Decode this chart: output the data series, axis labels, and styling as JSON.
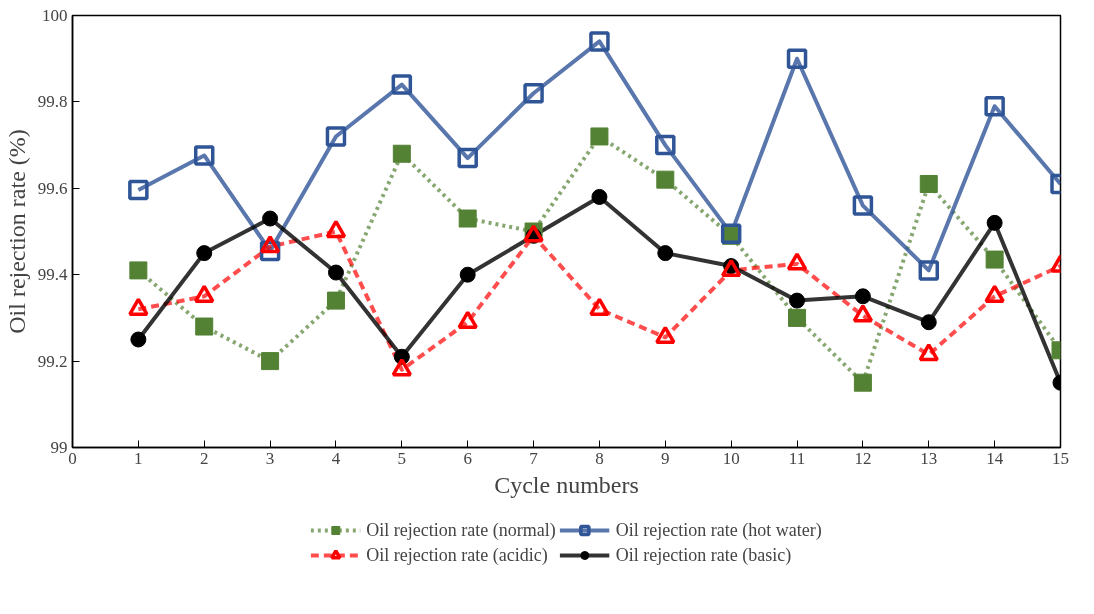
{
  "chart_data": {
    "type": "line",
    "xlabel": "Cycle numbers",
    "ylabel": "Oil rejection rate (%)",
    "x": [
      1,
      2,
      3,
      4,
      5,
      6,
      7,
      8,
      9,
      10,
      11,
      12,
      13,
      14,
      15
    ],
    "xlim": [
      0,
      15
    ],
    "xticks": [
      0,
      1,
      2,
      3,
      4,
      5,
      6,
      7,
      8,
      9,
      10,
      11,
      12,
      13,
      14,
      15
    ],
    "ylim": [
      99,
      100
    ],
    "yticks": [
      99,
      99.2,
      99.4,
      99.6,
      99.8,
      100
    ],
    "grid": false,
    "legend": "bottom",
    "series": [
      {
        "name": "Oil rejection rate (normal)",
        "color": "#548235",
        "marker": "square",
        "line_style": "dotted",
        "values": [
          99.41,
          99.28,
          99.2,
          99.34,
          99.68,
          99.53,
          99.5,
          99.72,
          99.62,
          99.49,
          99.3,
          99.15,
          99.61,
          99.435,
          99.225
        ]
      },
      {
        "name": "Oil rejection rate (hot water)",
        "color": "#2f5597",
        "marker": "square",
        "line_style": "solid",
        "values": [
          99.596,
          99.676,
          99.455,
          99.72,
          99.84,
          99.67,
          99.82,
          99.94,
          99.7,
          99.495,
          99.9,
          99.56,
          99.41,
          99.79,
          99.61
        ]
      },
      {
        "name": "Oil rejection rate (acidic)",
        "color": "#ff0000",
        "marker": "triangle",
        "line_style": "dashed",
        "values": [
          99.32,
          99.35,
          99.465,
          99.5,
          99.18,
          99.29,
          99.49,
          99.32,
          99.255,
          99.41,
          99.425,
          99.305,
          99.215,
          99.35,
          99.42
        ]
      },
      {
        "name": "Oil rejection rate (basic)",
        "color": "#000000",
        "marker": "circle",
        "line_style": "solid",
        "values": [
          99.25,
          99.45,
          99.53,
          99.405,
          99.21,
          99.4,
          99.49,
          99.58,
          99.45,
          99.42,
          99.34,
          99.35,
          99.29,
          99.52,
          99.15
        ]
      }
    ]
  }
}
